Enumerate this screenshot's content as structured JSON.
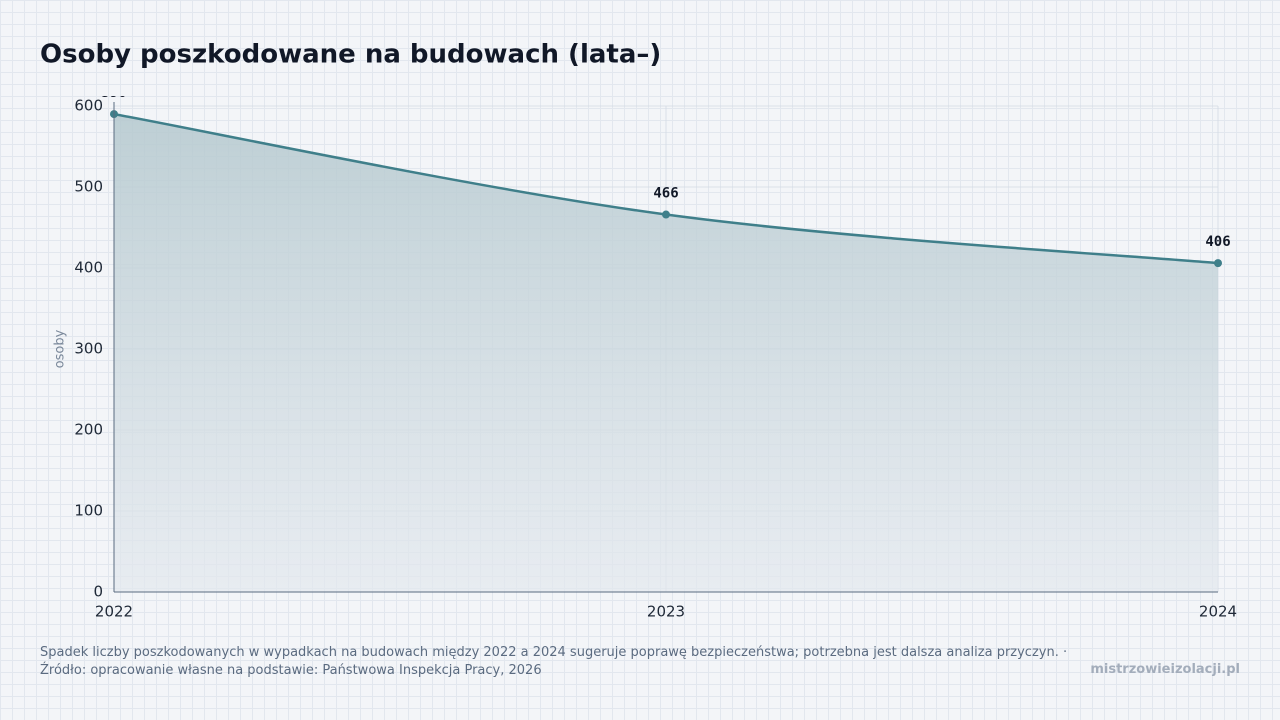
{
  "chart_data": {
    "type": "area",
    "title": "Osoby poszkodowane na budowach (lata–)",
    "y_label": "osoby",
    "categories": [
      "2022",
      "2023",
      "2024"
    ],
    "values": [
      590,
      466,
      406
    ],
    "color": "#3f7f8a",
    "ylim": [
      0,
      600
    ],
    "yticks": [
      0,
      100,
      200,
      300,
      400,
      500,
      600
    ],
    "grid": true
  },
  "footer": {
    "note": "Spadek liczby poszkodowanych w wypadkach na budowach między 2022 a 2024 sugeruje poprawę bezpieczeństwa; potrzebna jest dalsza analiza przyczyn.",
    "separator": "·",
    "source": "Źródło: opracowanie własne na podstawie: Państwowa Inspekcja Pracy, 2026",
    "brand": "mistrzowieizolacji.pl"
  }
}
